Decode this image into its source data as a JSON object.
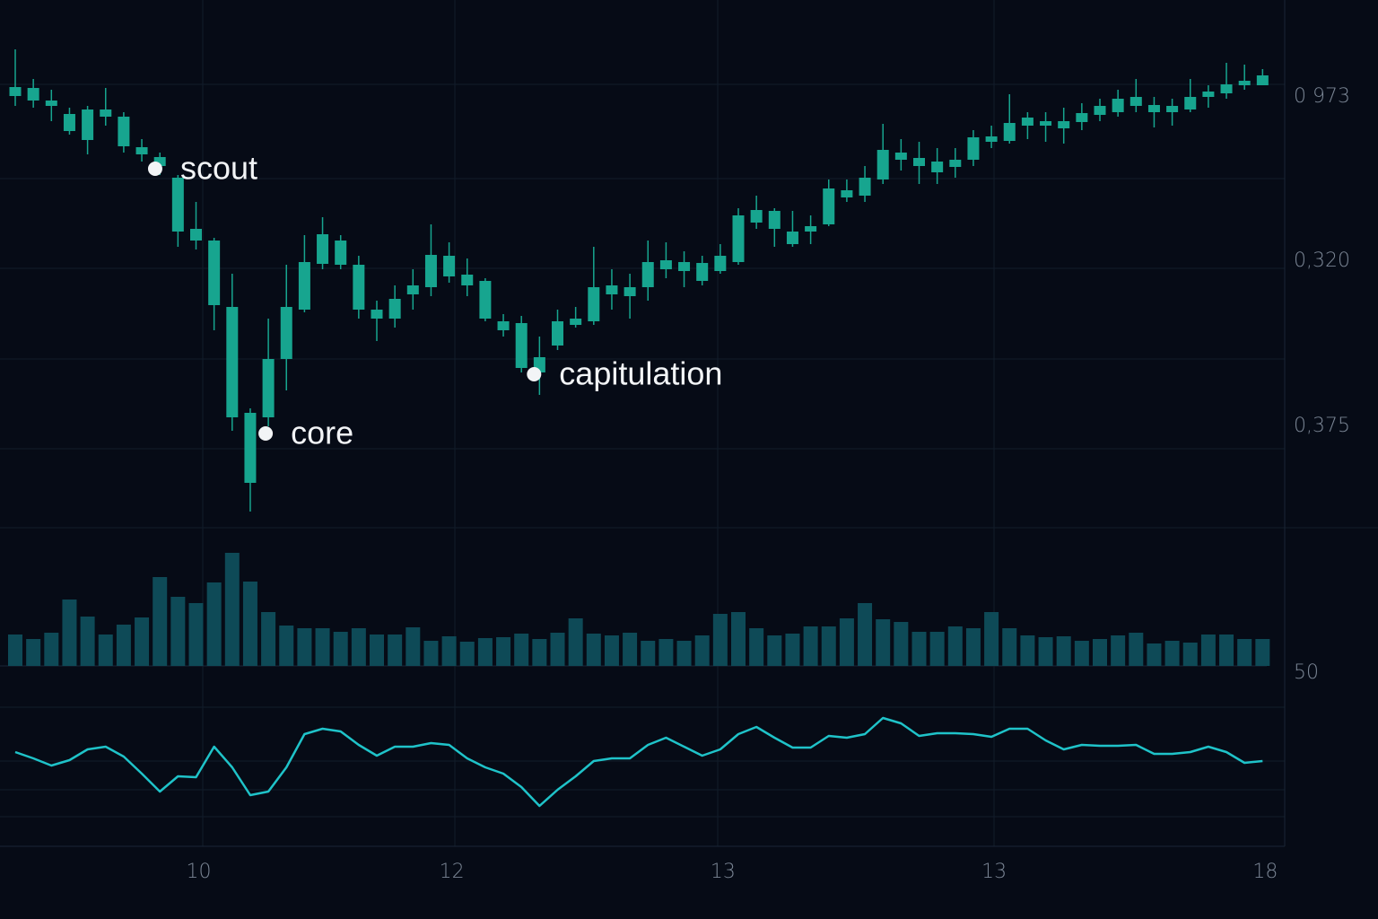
{
  "chart_data": [
    {
      "type": "candlestick",
      "categories": [
        null,
        null,
        null,
        null,
        null,
        null,
        null,
        null,
        null,
        null,
        "10",
        null,
        null,
        null,
        null,
        null,
        null,
        null,
        null,
        null,
        null,
        null,
        null,
        null,
        "12",
        null,
        null,
        null,
        null,
        null,
        null,
        null,
        null,
        null,
        null,
        null,
        null,
        null,
        null,
        "13",
        null,
        null,
        null,
        null,
        null,
        null,
        null,
        null,
        null,
        null,
        null,
        null,
        null,
        null,
        "13",
        null,
        null,
        null,
        null,
        null,
        null,
        null,
        null,
        null,
        null,
        null,
        null,
        null,
        null,
        "18"
      ],
      "open": [
        493,
        492,
        478,
        463,
        434,
        468,
        460,
        426,
        415,
        392,
        335,
        322,
        248,
        52,
        125,
        190,
        245,
        296,
        322,
        295,
        245,
        235,
        262,
        270,
        305,
        284,
        277,
        232,
        230,
        175,
        205,
        228,
        232,
        262,
        270,
        270,
        290,
        298,
        277,
        288,
        298,
        342,
        355,
        332,
        332,
        340,
        370,
        372,
        390,
        420,
        414,
        410,
        404,
        412,
        432,
        433,
        450,
        455,
        447,
        454,
        462,
        465,
        472,
        473,
        465,
        468,
        482,
        486,
        495,
        495
      ],
      "high": [
        535,
        502,
        490,
        470,
        472,
        492,
        465,
        435,
        420,
        395,
        365,
        325,
        285,
        135,
        235,
        295,
        328,
        348,
        328,
        305,
        255,
        272,
        290,
        340,
        320,
        302,
        280,
        240,
        238,
        215,
        245,
        248,
        315,
        290,
        285,
        322,
        320,
        310,
        305,
        318,
        358,
        372,
        358,
        355,
        350,
        390,
        390,
        405,
        452,
        435,
        432,
        425,
        425,
        445,
        450,
        485,
        465,
        465,
        470,
        475,
        480,
        490,
        502,
        482,
        480,
        502,
        495,
        520,
        518,
        513
      ],
      "low": [
        472,
        470,
        455,
        440,
        418,
        450,
        420,
        410,
        395,
        315,
        312,
        222,
        110,
        20,
        115,
        155,
        242,
        290,
        290,
        235,
        210,
        225,
        245,
        260,
        275,
        260,
        232,
        215,
        175,
        150,
        200,
        225,
        228,
        245,
        235,
        255,
        280,
        270,
        272,
        285,
        295,
        335,
        315,
        315,
        318,
        338,
        365,
        365,
        385,
        400,
        385,
        385,
        392,
        405,
        425,
        430,
        435,
        432,
        430,
        445,
        455,
        460,
        465,
        448,
        450,
        465,
        470,
        480,
        490,
        495
      ],
      "close": [
        483,
        478,
        472,
        444,
        468,
        460,
        427,
        418,
        405,
        332,
        322,
        250,
        125,
        130,
        190,
        248,
        298,
        329,
        295,
        245,
        235,
        257,
        272,
        306,
        282,
        272,
        235,
        222,
        180,
        192,
        232,
        235,
        270,
        272,
        260,
        298,
        300,
        288,
        297,
        305,
        350,
        356,
        335,
        318,
        338,
        380,
        378,
        392,
        423,
        412,
        405,
        398,
        412,
        437,
        438,
        453,
        459,
        450,
        455,
        464,
        472,
        480,
        482,
        465,
        472,
        482,
        488,
        496,
        500,
        506
      ],
      "color": "#17a58f",
      "ylim": [
        0,
        590
      ],
      "price_axis_labels": [
        "0 973",
        "0,320",
        "0,375"
      ],
      "annotations": [
        {
          "text": "scout",
          "x": 7.74,
          "y": 402
        },
        {
          "text": "core",
          "x": 13.85,
          "y": 107
        },
        {
          "text": "capitulation",
          "x": 28.7,
          "y": 173
        }
      ]
    },
    {
      "type": "bar",
      "values": [
        35,
        30,
        37,
        74,
        55,
        35,
        46,
        54,
        99,
        77,
        70,
        93,
        126,
        94,
        60,
        45,
        42,
        42,
        38,
        42,
        35,
        35,
        43,
        28,
        33,
        27,
        31,
        32,
        36,
        30,
        37,
        53,
        36,
        34,
        37,
        28,
        30,
        28,
        34,
        58,
        60,
        42,
        34,
        36,
        44,
        44,
        53,
        70,
        52,
        49,
        38,
        38,
        44,
        42,
        60,
        42,
        34,
        32,
        33,
        28,
        30,
        34,
        37,
        25,
        28,
        26,
        35,
        35,
        30,
        30
      ],
      "color": "#0e4a57",
      "ylim": [
        0,
        150
      ],
      "axis_label": "50"
    },
    {
      "type": "line",
      "values": [
        102,
        95,
        87,
        93,
        105,
        108,
        97,
        78,
        58,
        75,
        74,
        108,
        85,
        54,
        58,
        85,
        122,
        128,
        125,
        110,
        98,
        108,
        108,
        112,
        110,
        95,
        85,
        78,
        63,
        42,
        60,
        75,
        92,
        95,
        95,
        110,
        118,
        108,
        98,
        105,
        122,
        130,
        118,
        107,
        107,
        120,
        118,
        122,
        140,
        134,
        120,
        123,
        123,
        122,
        119,
        128,
        128,
        115,
        105,
        110,
        109,
        109,
        110,
        100,
        100,
        102,
        108,
        102,
        90,
        92
      ],
      "color": "#1fc3c9",
      "ylim": [
        0,
        160
      ]
    }
  ]
}
